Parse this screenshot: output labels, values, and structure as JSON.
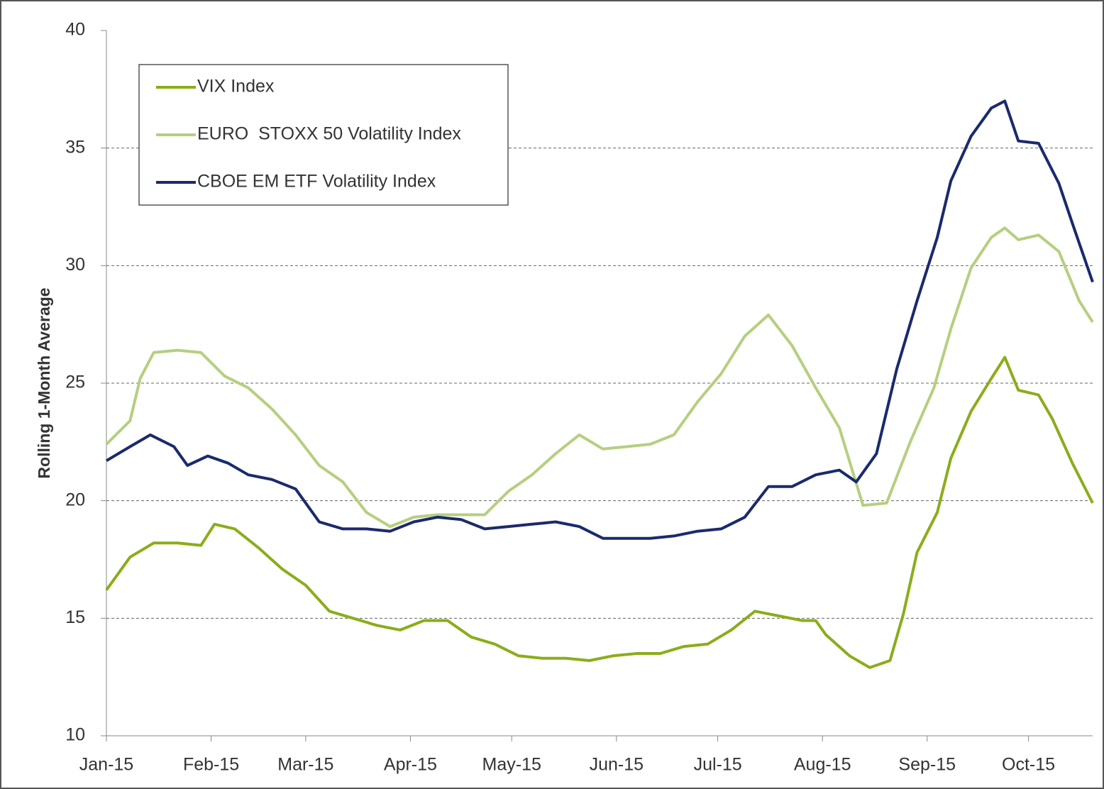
{
  "chart_data": {
    "type": "line",
    "y_label": "Rolling 1-Month Average",
    "xlim": [
      0,
      292
    ],
    "xticks": [
      {
        "value": 0,
        "label": "Jan-15"
      },
      {
        "value": 31,
        "label": "Feb-15"
      },
      {
        "value": 59,
        "label": "Mar-15"
      },
      {
        "value": 90,
        "label": "Apr-15"
      },
      {
        "value": 120,
        "label": "May-15"
      },
      {
        "value": 151,
        "label": "Jun-15"
      },
      {
        "value": 181,
        "label": "Jul-15"
      },
      {
        "value": 212,
        "label": "Aug-15"
      },
      {
        "value": 243,
        "label": "Sep-15"
      },
      {
        "value": 273,
        "label": "Oct-15"
      }
    ],
    "ylim": [
      10,
      40
    ],
    "yticks": [
      10,
      15,
      20,
      25,
      30,
      35,
      40
    ],
    "grid": true,
    "legend": "top-left",
    "series": [
      {
        "name": "VIX Index",
        "color": "#8aad1a",
        "x": [
          0,
          7,
          14,
          21,
          28,
          32,
          38,
          45,
          52,
          59,
          66,
          73,
          80,
          87,
          94,
          101,
          108,
          115,
          122,
          129,
          136,
          143,
          150,
          157,
          164,
          171,
          178,
          185,
          192,
          199,
          206,
          210,
          213,
          220,
          226,
          232,
          236,
          240,
          246,
          250,
          256,
          262,
          266,
          270,
          276,
          280,
          286,
          292
        ],
        "values": [
          16.2,
          17.6,
          18.2,
          18.2,
          18.1,
          19.0,
          18.8,
          18.0,
          17.1,
          16.4,
          15.3,
          15.0,
          14.7,
          14.5,
          14.9,
          14.9,
          14.2,
          13.9,
          13.4,
          13.3,
          13.3,
          13.2,
          13.4,
          13.5,
          13.5,
          13.8,
          13.9,
          14.5,
          15.3,
          15.1,
          14.9,
          14.9,
          14.3,
          13.4,
          12.9,
          13.2,
          15.2,
          17.8,
          19.5,
          21.8,
          23.8,
          25.2,
          26.1,
          24.7,
          24.5,
          23.5,
          21.6,
          19.9
        ]
      },
      {
        "name": "EURO  STOXX 50 Volatility Index",
        "color": "#b5cf7f",
        "x": [
          0,
          7,
          10,
          14,
          21,
          28,
          35,
          42,
          49,
          56,
          63,
          70,
          77,
          84,
          91,
          98,
          105,
          112,
          119,
          126,
          133,
          140,
          147,
          154,
          161,
          168,
          175,
          182,
          189,
          196,
          203,
          210,
          217,
          224,
          231,
          238,
          245,
          250,
          256,
          262,
          266,
          270,
          276,
          282,
          288,
          292
        ],
        "values": [
          22.4,
          23.4,
          25.2,
          26.3,
          26.4,
          26.3,
          25.3,
          24.8,
          23.9,
          22.8,
          21.5,
          20.8,
          19.5,
          18.9,
          19.3,
          19.4,
          19.4,
          19.4,
          20.4,
          21.1,
          22.0,
          22.8,
          22.2,
          22.3,
          22.4,
          22.8,
          24.2,
          25.4,
          27.0,
          27.9,
          26.6,
          24.8,
          23.1,
          19.8,
          19.9,
          22.5,
          24.8,
          27.3,
          29.9,
          31.2,
          31.6,
          31.1,
          31.3,
          30.6,
          28.5,
          27.6
        ]
      },
      {
        "name": "CBOE EM ETF Volatility Index",
        "color": "#1a2a6c",
        "x": [
          0,
          7,
          13,
          20,
          24,
          30,
          36,
          42,
          49,
          56,
          63,
          70,
          77,
          84,
          91,
          98,
          105,
          112,
          119,
          126,
          133,
          140,
          147,
          154,
          161,
          168,
          175,
          182,
          189,
          196,
          203,
          210,
          217,
          222,
          228,
          234,
          240,
          246,
          250,
          256,
          262,
          266,
          270,
          276,
          282,
          286,
          292
        ],
        "values": [
          21.7,
          22.3,
          22.8,
          22.3,
          21.5,
          21.9,
          21.6,
          21.1,
          20.9,
          20.5,
          19.1,
          18.8,
          18.8,
          18.7,
          19.1,
          19.3,
          19.2,
          18.8,
          18.9,
          19.0,
          19.1,
          18.9,
          18.4,
          18.4,
          18.4,
          18.5,
          18.7,
          18.8,
          19.3,
          20.6,
          20.6,
          21.1,
          21.3,
          20.8,
          22.0,
          25.6,
          28.5,
          31.2,
          33.6,
          35.5,
          36.7,
          37.0,
          35.3,
          35.2,
          33.5,
          31.8,
          29.3
        ]
      }
    ]
  }
}
